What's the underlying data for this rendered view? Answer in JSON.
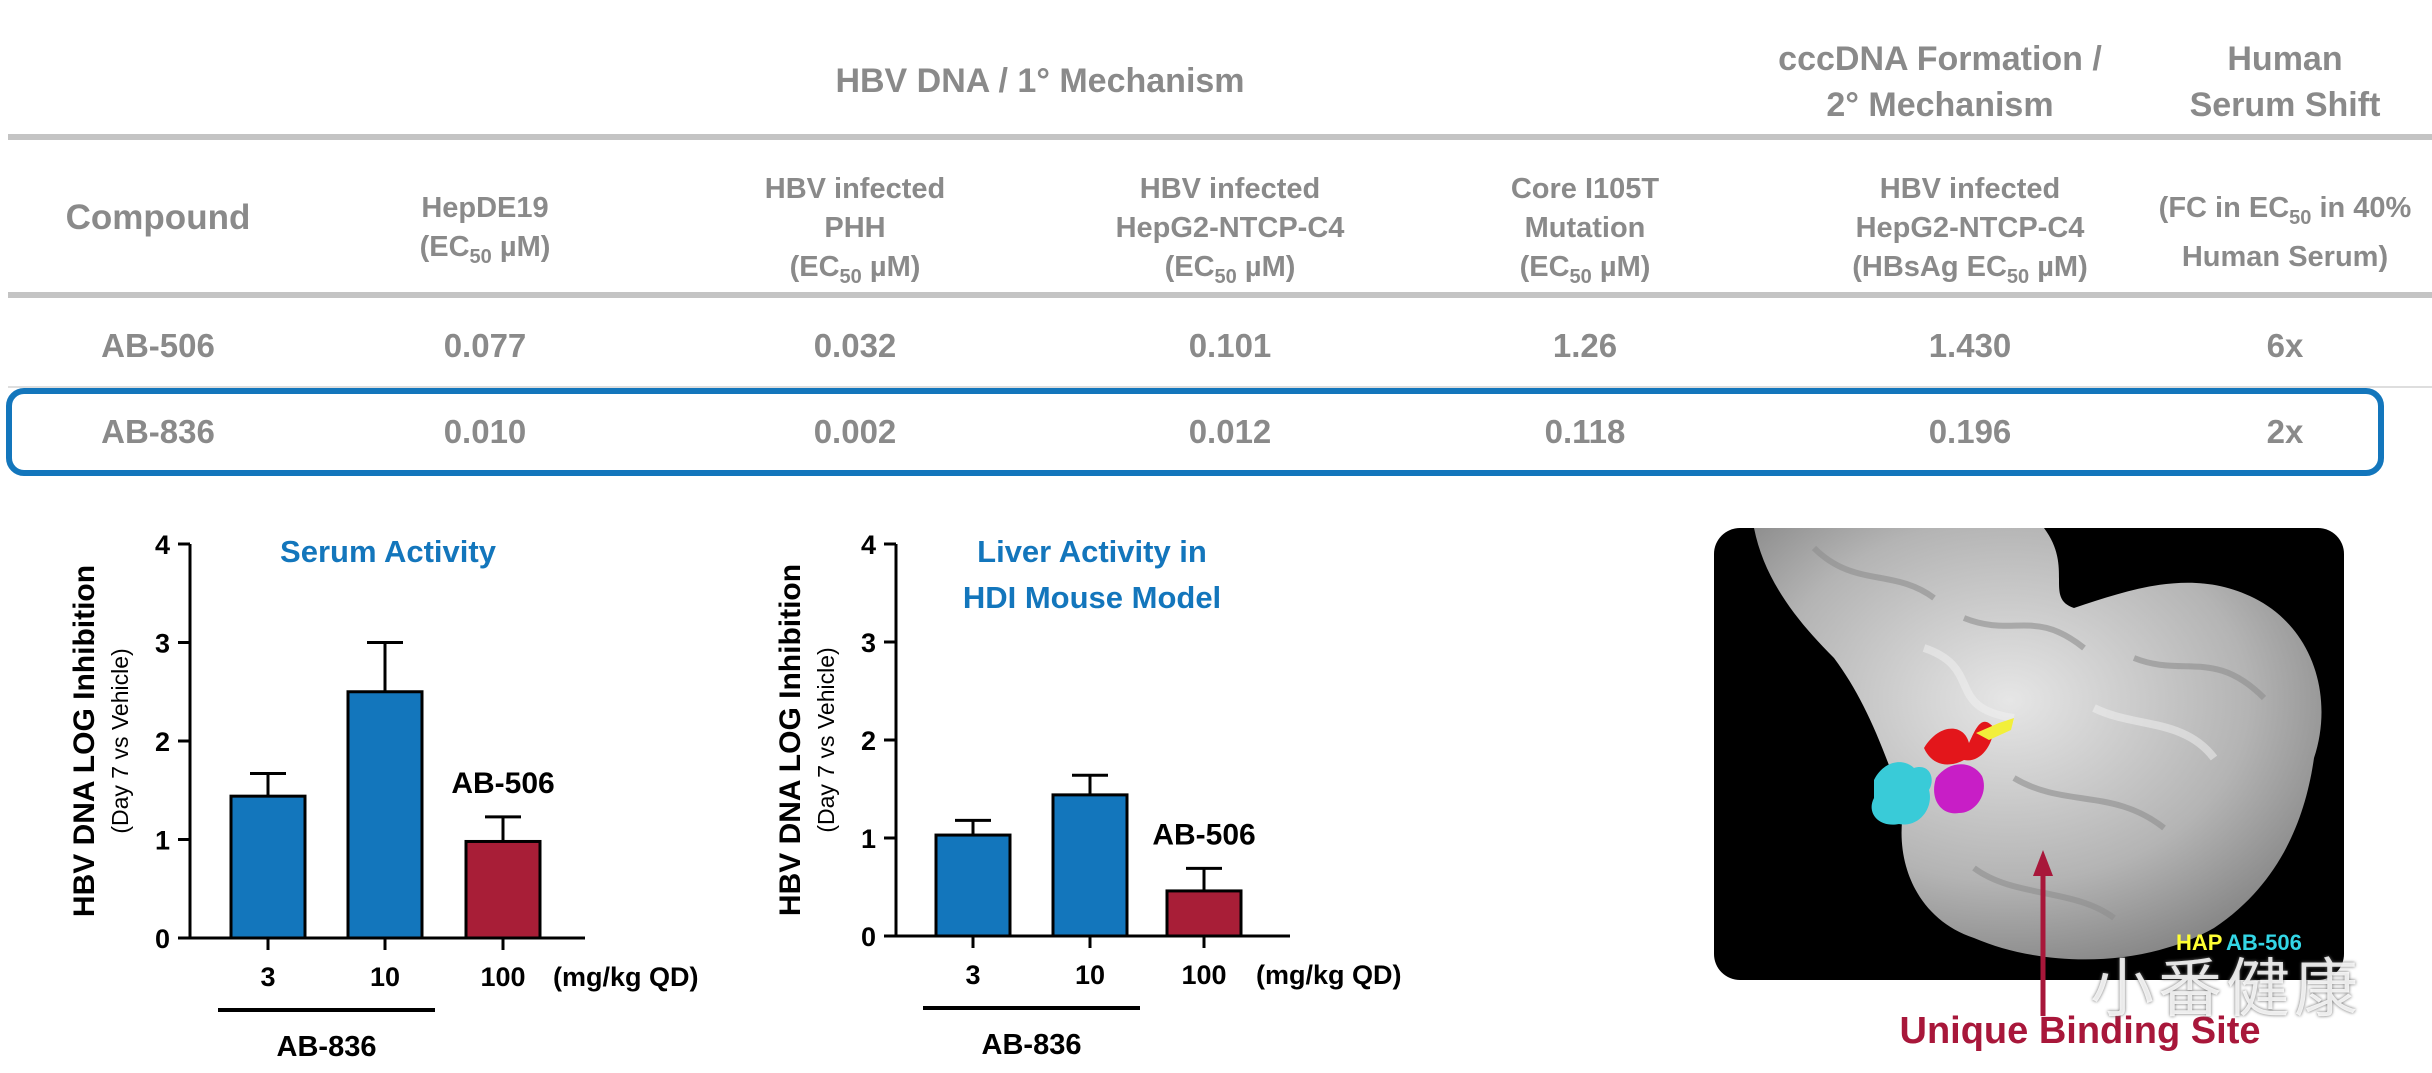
{
  "table": {
    "group_headers": {
      "primary": "HBV DNA / 1° Mechanism",
      "cccdna_line1": "cccDNA Formation /",
      "cccdna_line2": "2° Mechanism",
      "serum_line1": "Human",
      "serum_line2": "Serum Shift"
    },
    "columns": [
      {
        "lines": [
          "Compound"
        ]
      },
      {
        "lines": [
          "HepDE19",
          "(EC50 µM)"
        ]
      },
      {
        "lines": [
          "HBV infected",
          "PHH",
          "(EC50 µM)"
        ]
      },
      {
        "lines": [
          "HBV infected",
          "HepG2-NTCP-C4",
          "(EC50 µM)"
        ]
      },
      {
        "lines": [
          "Core I105T",
          "Mutation",
          "(EC50 µM)"
        ]
      },
      {
        "lines": [
          "HBV infected",
          "HepG2-NTCP-C4",
          "(HBsAg EC50 µM)"
        ]
      },
      {
        "lines": [
          "(FC in EC50 in 40%",
          "Human Serum)"
        ]
      }
    ],
    "rows": [
      [
        "AB-506",
        "0.077",
        "0.032",
        "0.101",
        "1.26",
        "1.430",
        "6x"
      ],
      [
        "AB-836",
        "0.010",
        "0.002",
        "0.012",
        "0.118",
        "0.196",
        "2x"
      ]
    ],
    "highlighted_row": "AB-836",
    "highlight_color": "#1376bc"
  },
  "chart_data": [
    {
      "type": "bar",
      "title": "Serum Activity",
      "ylabel": "HBV DNA LOG Inhibition",
      "ylabel_sub": "(Day 7 vs Vehicle)",
      "ylim": [
        0,
        4
      ],
      "yticks": [
        "0",
        "1",
        "2",
        "3",
        "4"
      ],
      "categories": [
        "3",
        "10",
        "100"
      ],
      "values": [
        1.44,
        2.5,
        0.98
      ],
      "errors": [
        0.23,
        0.5,
        0.25
      ],
      "colors": [
        "#1376bc",
        "#1376bc",
        "#a81e37"
      ],
      "unit_label": "(mg/kg QD)",
      "group_label": "AB-836",
      "annotation": "AB-506"
    },
    {
      "type": "bar",
      "title": "Liver Activity in HDI Mouse Model",
      "title_lines": [
        "Liver Activity in",
        "HDI Mouse Model"
      ],
      "ylabel": "HBV DNA LOG Inhibition",
      "ylabel_sub": "(Day 7 vs Vehicle)",
      "ylim": [
        0,
        4
      ],
      "yticks": [
        "0",
        "1",
        "2",
        "3",
        "4"
      ],
      "categories": [
        "3",
        "10",
        "100"
      ],
      "values": [
        1.03,
        1.44,
        0.46
      ],
      "errors": [
        0.15,
        0.2,
        0.23
      ],
      "colors": [
        "#1376bc",
        "#1376bc",
        "#a81e37"
      ],
      "unit_label": "(mg/kg QD)",
      "group_label": "AB-836",
      "annotation": "AB-506"
    }
  ],
  "structure_image": {
    "legend": [
      {
        "label": "HAP",
        "color": "#ffff33"
      },
      {
        "label": "AB-506",
        "color": "#33d6e6"
      }
    ],
    "binding_label": "Unique Binding Site",
    "watermark": "小番健康"
  }
}
